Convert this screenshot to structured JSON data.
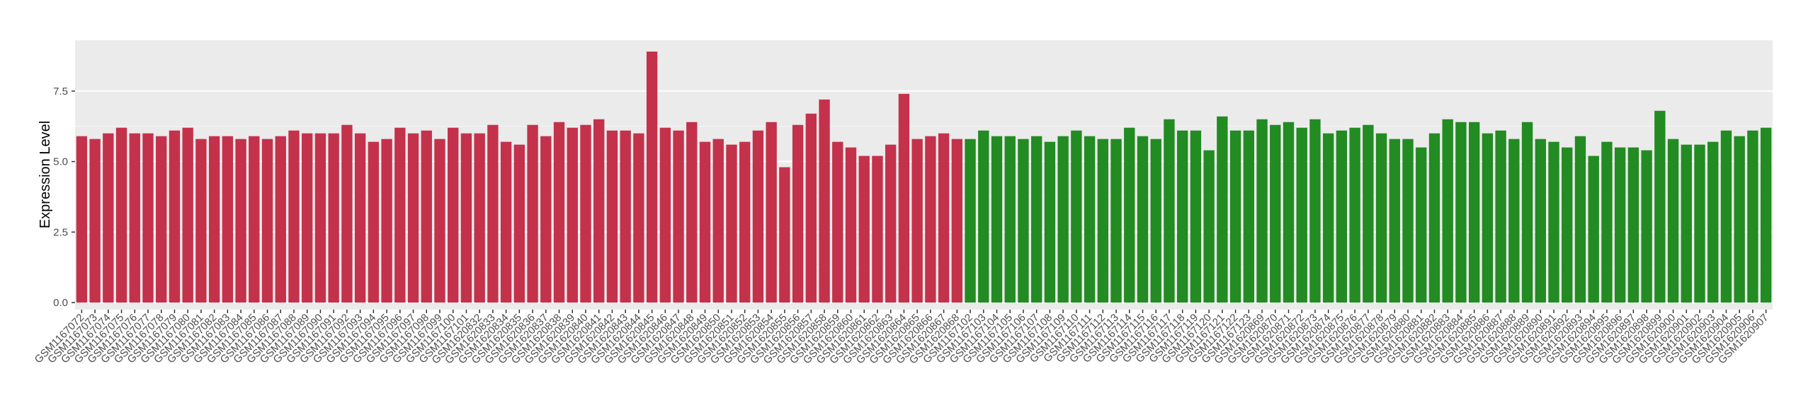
{
  "chart_data": {
    "type": "bar",
    "y_label": "Expression Level",
    "categories": [
      "GSM1167072",
      "GSM1167073",
      "GSM1167074",
      "GSM1167075",
      "GSM1167076",
      "GSM1167077",
      "GSM1167078",
      "GSM1167079",
      "GSM1167080",
      "GSM1167081",
      "GSM1167082",
      "GSM1167083",
      "GSM1167084",
      "GSM1167085",
      "GSM1167086",
      "GSM1167087",
      "GSM1167088",
      "GSM1167089",
      "GSM1167090",
      "GSM1167091",
      "GSM1167092",
      "GSM1167093",
      "GSM1167094",
      "GSM1167095",
      "GSM1167096",
      "GSM1167097",
      "GSM1167098",
      "GSM1167099",
      "GSM1167100",
      "GSM1167101",
      "GSM1620832",
      "GSM1620833",
      "GSM1620834",
      "GSM1620835",
      "GSM1620836",
      "GSM1620837",
      "GSM1620838",
      "GSM1620839",
      "GSM1620840",
      "GSM1620841",
      "GSM1620842",
      "GSM1620843",
      "GSM1620844",
      "GSM1620845",
      "GSM1620846",
      "GSM1620847",
      "GSM1620848",
      "GSM1620849",
      "GSM1620850",
      "GSM1620851",
      "GSM1620852",
      "GSM1620853",
      "GSM1620854",
      "GSM1620855",
      "GSM1620856",
      "GSM1620857",
      "GSM1620858",
      "GSM1620859",
      "GSM1620860",
      "GSM1620861",
      "GSM1620862",
      "GSM1620863",
      "GSM1620864",
      "GSM1620865",
      "GSM1620866",
      "GSM1620867",
      "GSM1620868",
      "GSM1167102",
      "GSM1167103",
      "GSM1167104",
      "GSM1167105",
      "GSM1167106",
      "GSM1167107",
      "GSM1167108",
      "GSM1167109",
      "GSM1167110",
      "GSM1167111",
      "GSM1167112",
      "GSM1167113",
      "GSM1167114",
      "GSM1167115",
      "GSM1167116",
      "GSM1167117",
      "GSM1167118",
      "GSM1167119",
      "GSM1167120",
      "GSM1167121",
      "GSM1167122",
      "GSM1167123",
      "GSM1620869",
      "GSM1620870",
      "GSM1620871",
      "GSM1620872",
      "GSM1620873",
      "GSM1620874",
      "GSM1620875",
      "GSM1620876",
      "GSM1620877",
      "GSM1620878",
      "GSM1620879",
      "GSM1620880",
      "GSM1620881",
      "GSM1620882",
      "GSM1620883",
      "GSM1620884",
      "GSM1620885",
      "GSM1620886",
      "GSM1620887",
      "GSM1620888",
      "GSM1620889",
      "GSM1620890",
      "GSM1620891",
      "GSM1620892",
      "GSM1620893",
      "GSM1620894",
      "GSM1620895",
      "GSM1620896",
      "GSM1620897",
      "GSM1620898",
      "GSM1620899",
      "GSM1620900",
      "GSM1620901",
      "GSM1620902",
      "GSM1620903",
      "GSM1620904",
      "GSM1620905",
      "GSM1620906",
      "GSM1620907"
    ],
    "values": [
      5.9,
      5.8,
      6.0,
      6.2,
      6.0,
      6.0,
      5.9,
      6.1,
      6.2,
      5.8,
      5.9,
      5.9,
      5.8,
      5.9,
      5.8,
      5.9,
      6.1,
      6.0,
      6.0,
      6.0,
      6.3,
      6.0,
      5.7,
      5.8,
      6.2,
      6.0,
      6.1,
      5.8,
      6.2,
      6.0,
      6.0,
      6.3,
      5.7,
      5.6,
      6.3,
      5.9,
      6.4,
      6.2,
      6.3,
      6.5,
      6.1,
      6.1,
      6.0,
      8.9,
      6.2,
      6.1,
      6.4,
      5.7,
      5.8,
      5.6,
      5.7,
      6.1,
      6.4,
      4.8,
      6.3,
      6.7,
      7.2,
      5.7,
      5.5,
      5.2,
      5.2,
      5.6,
      7.4,
      5.8,
      5.9,
      6.0,
      5.8,
      5.8,
      6.1,
      5.9,
      5.9,
      5.8,
      5.9,
      5.7,
      5.9,
      6.1,
      5.9,
      5.8,
      5.8,
      6.2,
      5.9,
      5.8,
      6.5,
      6.1,
      6.1,
      5.4,
      6.6,
      6.1,
      6.1,
      6.5,
      6.3,
      6.4,
      6.2,
      6.5,
      6.0,
      6.1,
      6.2,
      6.3,
      6.0,
      5.8,
      5.8,
      5.5,
      6.0,
      6.5,
      6.4,
      6.4,
      6.0,
      6.1,
      5.8,
      6.4,
      5.8,
      5.7,
      5.5,
      5.9,
      5.2,
      5.7,
      5.5,
      5.5,
      5.4,
      6.8,
      5.8,
      5.6,
      5.6,
      5.7,
      6.1,
      5.9,
      6.1,
      6.2
    ],
    "colors": [
      "#c4314b",
      "#c4314b",
      "#c4314b",
      "#c4314b",
      "#c4314b",
      "#c4314b",
      "#c4314b",
      "#c4314b",
      "#c4314b",
      "#c4314b",
      "#c4314b",
      "#c4314b",
      "#c4314b",
      "#c4314b",
      "#c4314b",
      "#c4314b",
      "#c4314b",
      "#c4314b",
      "#c4314b",
      "#c4314b",
      "#c4314b",
      "#c4314b",
      "#c4314b",
      "#c4314b",
      "#c4314b",
      "#c4314b",
      "#c4314b",
      "#c4314b",
      "#c4314b",
      "#c4314b",
      "#c4314b",
      "#c4314b",
      "#c4314b",
      "#c4314b",
      "#c4314b",
      "#c4314b",
      "#c4314b",
      "#c4314b",
      "#c4314b",
      "#c4314b",
      "#c4314b",
      "#c4314b",
      "#c4314b",
      "#c4314b",
      "#c4314b",
      "#c4314b",
      "#c4314b",
      "#c4314b",
      "#c4314b",
      "#c4314b",
      "#c4314b",
      "#c4314b",
      "#c4314b",
      "#c4314b",
      "#c4314b",
      "#c4314b",
      "#c4314b",
      "#c4314b",
      "#c4314b",
      "#c4314b",
      "#c4314b",
      "#c4314b",
      "#c4314b",
      "#c4314b",
      "#c4314b",
      "#c4314b",
      "#c4314b",
      "#228b22",
      "#228b22",
      "#228b22",
      "#228b22",
      "#228b22",
      "#228b22",
      "#228b22",
      "#228b22",
      "#228b22",
      "#228b22",
      "#228b22",
      "#228b22",
      "#228b22",
      "#228b22",
      "#228b22",
      "#228b22",
      "#228b22",
      "#228b22",
      "#228b22",
      "#228b22",
      "#228b22",
      "#228b22",
      "#228b22",
      "#228b22",
      "#228b22",
      "#228b22",
      "#228b22",
      "#228b22",
      "#228b22",
      "#228b22",
      "#228b22",
      "#228b22",
      "#228b22",
      "#228b22",
      "#228b22",
      "#228b22",
      "#228b22",
      "#228b22",
      "#228b22",
      "#228b22",
      "#228b22",
      "#228b22",
      "#228b22",
      "#228b22",
      "#228b22",
      "#228b22",
      "#228b22",
      "#228b22",
      "#228b22",
      "#228b22",
      "#228b22",
      "#228b22",
      "#228b22",
      "#228b22",
      "#228b22",
      "#228b22",
      "#228b22",
      "#228b22",
      "#228b22",
      "#228b22",
      "#228b22"
    ],
    "ylim": [
      -0.25,
      9.3
    ],
    "yticks": [
      {
        "value": 0,
        "label": "0.0"
      },
      2.5,
      {
        "value": 5,
        "label": "5.0"
      },
      7.5
    ],
    "grid": true
  }
}
